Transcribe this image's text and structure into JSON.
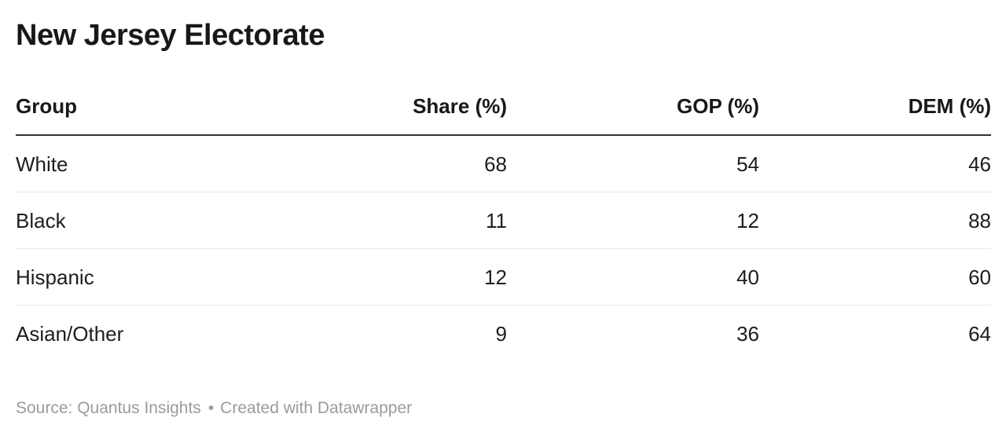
{
  "title": "New Jersey Electorate",
  "table": {
    "columns": [
      {
        "label": "Group"
      },
      {
        "label": "Share (%)"
      },
      {
        "label": "GOP (%)"
      },
      {
        "label": "DEM (%)"
      }
    ],
    "rows": [
      [
        "White",
        "68",
        "54",
        "46"
      ],
      [
        "Black",
        "11",
        "12",
        "88"
      ],
      [
        "Hispanic",
        "12",
        "40",
        "60"
      ],
      [
        "Asian/Other",
        "9",
        "36",
        "64"
      ]
    ]
  },
  "footer": {
    "source_label": "Source:",
    "source_name": "Quantus Insights",
    "separator": "•",
    "attribution": "Created with Datawrapper"
  },
  "colors": {
    "title_text": "#181818",
    "body_text": "#1d1d1d",
    "header_border": "#333333",
    "row_divider": "#e9e9e9",
    "footer_text": "#9b9b9b",
    "background": "#ffffff"
  },
  "chart_data": {
    "type": "table",
    "title": "New Jersey Electorate",
    "columns": [
      "Group",
      "Share (%)",
      "GOP (%)",
      "DEM (%)"
    ],
    "rows": [
      [
        "White",
        68,
        54,
        46
      ],
      [
        "Black",
        11,
        12,
        88
      ],
      [
        "Hispanic",
        12,
        40,
        60
      ],
      [
        "Asian/Other",
        9,
        36,
        64
      ]
    ],
    "source": "Quantus Insights",
    "attribution": "Created with Datawrapper"
  }
}
